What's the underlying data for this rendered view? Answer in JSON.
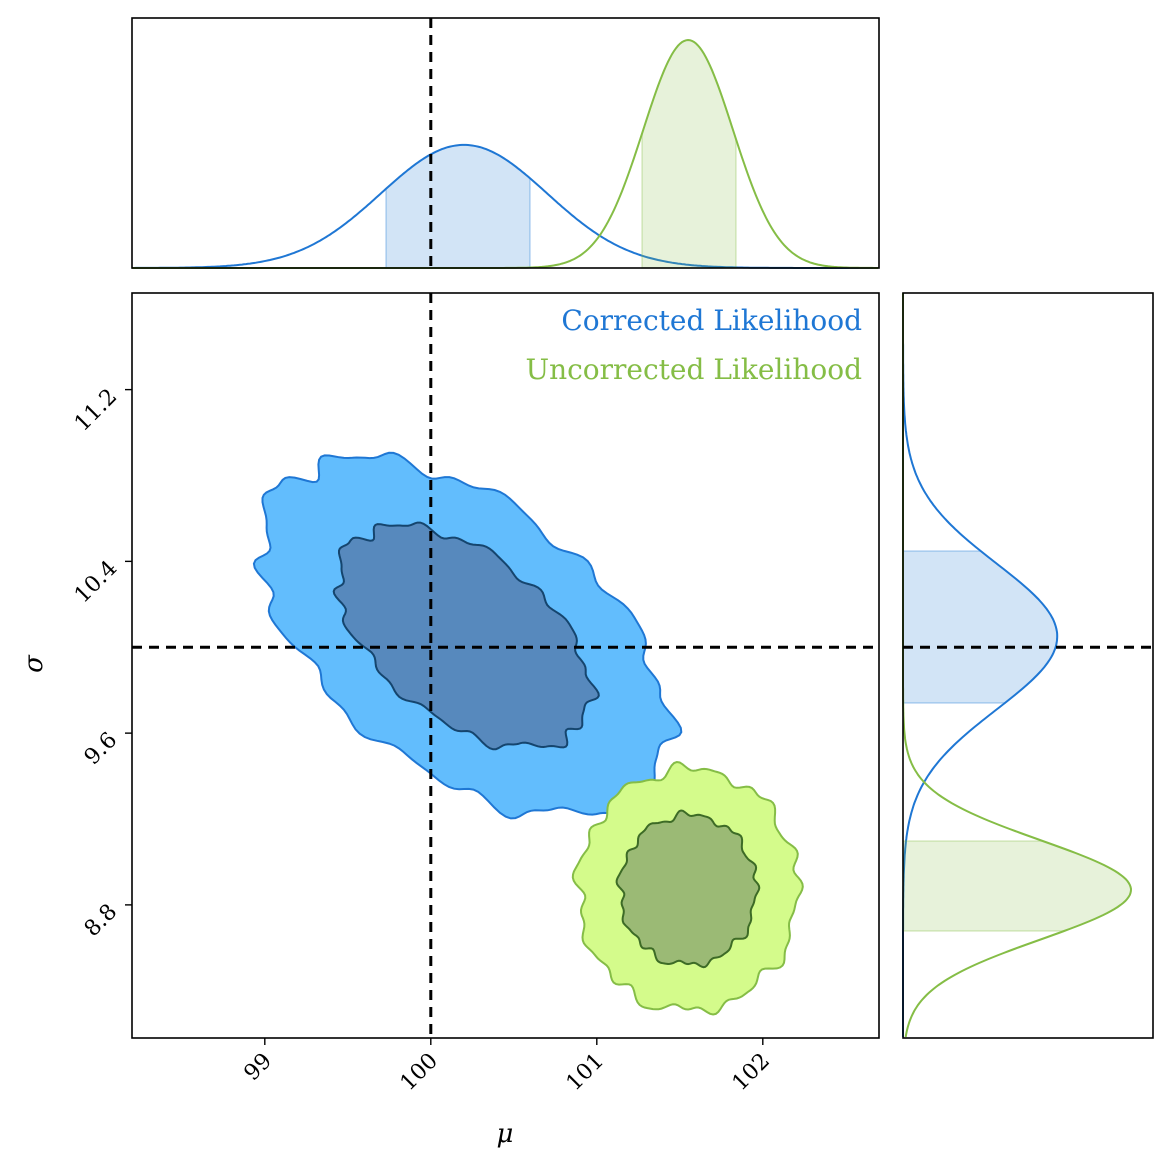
{
  "chart_data": {
    "type": "corner-contour",
    "xlabel": "μ",
    "ylabel": "σ",
    "xlim": [
      98.2,
      102.7
    ],
    "ylim": [
      8.18,
      11.65
    ],
    "x_ticks": [
      "99",
      "100",
      "101",
      "102"
    ],
    "y_ticks": [
      "8.8",
      "9.6",
      "10.4",
      "11.2"
    ],
    "truth": {
      "mu": 100.0,
      "sigma": 10.0
    },
    "legend": {
      "placement": "top-right"
    },
    "series": [
      {
        "name": "Corrected Likelihood",
        "color": "#1f77d4",
        "fill_outer": "#62bdfd",
        "fill_inner": "#5789bd",
        "line_inner": "#15456e",
        "mu_mean": 100.2,
        "mu_sd": 0.5,
        "sigma_mean": 10.05,
        "sigma_sd": 0.34,
        "rho": -0.5,
        "mu_interval": [
          99.72,
          100.6
        ],
        "sigma_interval": [
          9.74,
          10.45
        ]
      },
      {
        "name": "Uncorrected Likelihood",
        "color": "#85bd46",
        "fill_outer": "#d4fb8b",
        "fill_inner": "#9bba75",
        "line_inner": "#3d6b26",
        "mu_mean": 101.55,
        "mu_sd": 0.27,
        "sigma_mean": 8.87,
        "sigma_sd": 0.23,
        "rho": 0.0,
        "mu_interval": [
          101.27,
          101.85
        ],
        "sigma_interval": [
          8.67,
          9.1
        ]
      }
    ]
  }
}
